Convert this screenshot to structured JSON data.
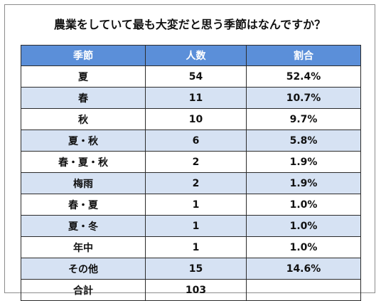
{
  "chart_data": {
    "type": "table",
    "title": "農業をしていて最も大変だと思う季節はなんですか？",
    "columns": [
      "季節",
      "人数",
      "割合"
    ],
    "rows": [
      {
        "season": "夏",
        "count": "54",
        "ratio": "52.4%"
      },
      {
        "season": "春",
        "count": "11",
        "ratio": "10.7%"
      },
      {
        "season": "秋",
        "count": "10",
        "ratio": "9.7%"
      },
      {
        "season": "夏・秋",
        "count": "6",
        "ratio": "5.8%"
      },
      {
        "season": "春・夏・秋",
        "count": "2",
        "ratio": "1.9%"
      },
      {
        "season": "梅雨",
        "count": "2",
        "ratio": "1.9%"
      },
      {
        "season": "春・夏",
        "count": "1",
        "ratio": "1.0%"
      },
      {
        "season": "夏・冬",
        "count": "1",
        "ratio": "1.0%"
      },
      {
        "season": "年中",
        "count": "1",
        "ratio": "1.0%"
      },
      {
        "season": "その他",
        "count": "15",
        "ratio": "14.6%"
      }
    ],
    "total": {
      "label": "合計",
      "count": "103",
      "ratio": ""
    }
  },
  "colors": {
    "header_bg": "#5b8fd9",
    "alt_row_bg": "#d6e2f3",
    "border": "#2b2b2b"
  }
}
